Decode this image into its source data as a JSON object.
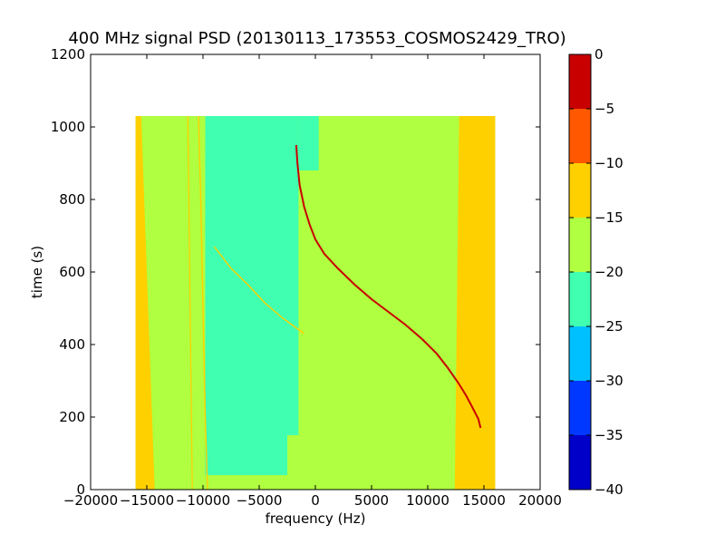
{
  "chart_data": {
    "type": "heatmap",
    "title": "400 MHz signal PSD (20130113_173553_COSMOS2429_TRO)",
    "xlabel": "frequency (Hz)",
    "ylabel": "time (s)",
    "xlim": [
      -20000,
      20000
    ],
    "ylim": [
      0,
      1200
    ],
    "xticks": [
      -20000,
      -15000,
      -10000,
      -5000,
      0,
      5000,
      10000,
      15000,
      20000
    ],
    "xtick_labels": [
      "−20000",
      "−15000",
      "−10000",
      "−5000",
      "0",
      "5000",
      "10000",
      "15000",
      "20000"
    ],
    "yticks": [
      0,
      200,
      400,
      600,
      800,
      1000,
      1200
    ],
    "ytick_labels": [
      "0",
      "200",
      "400",
      "600",
      "800",
      "1000",
      "1200"
    ],
    "data_extent": {
      "x": [
        -16000,
        16000
      ],
      "y": [
        0,
        1030
      ]
    },
    "colorbar": {
      "levels": [
        -40,
        -35,
        -30,
        -25,
        -20,
        -15,
        -10,
        -5,
        0
      ],
      "tick_labels": [
        "−40",
        "−35",
        "−30",
        "−25",
        "−20",
        "−15",
        "−10",
        "−5",
        "0"
      ],
      "colors": [
        "#0000c8",
        "#0038ff",
        "#00c0ff",
        "#40ffb0",
        "#b0ff40",
        "#ffd000",
        "#ff5800",
        "#c80000"
      ]
    },
    "regions": [
      {
        "name": "background",
        "level_color": "#b0ff40",
        "polygon": [
          [
            -16000,
            0
          ],
          [
            16000,
            0
          ],
          [
            16000,
            1030
          ],
          [
            -16000,
            1030
          ]
        ]
      },
      {
        "name": "left-edge-band",
        "level_color": "#ffd000",
        "polygon": [
          [
            -16000,
            0
          ],
          [
            -14300,
            0
          ],
          [
            -15500,
            1030
          ],
          [
            -16000,
            1030
          ]
        ]
      },
      {
        "name": "right-edge-band",
        "level_color": "#ffd000",
        "polygon": [
          [
            12400,
            0
          ],
          [
            16000,
            0
          ],
          [
            16000,
            1030
          ],
          [
            12800,
            1030
          ]
        ]
      },
      {
        "name": "central-noise-region",
        "level_color": "#40ffb0",
        "polygon": [
          [
            -9800,
            40
          ],
          [
            -2500,
            40
          ],
          [
            -2500,
            150
          ],
          [
            -1500,
            150
          ],
          [
            -1500,
            1030
          ],
          [
            -9800,
            1030
          ]
        ]
      },
      {
        "name": "upper-noise-extension",
        "level_color": "#40ffb0",
        "polygon": [
          [
            -1500,
            880
          ],
          [
            300,
            880
          ],
          [
            300,
            1030
          ],
          [
            -1500,
            1030
          ]
        ]
      },
      {
        "name": "left-stripe",
        "level_color": "#ffd000",
        "polygon": [
          [
            -11000,
            0
          ],
          [
            -10900,
            0
          ],
          [
            -11300,
            1030
          ],
          [
            -11400,
            1030
          ]
        ]
      },
      {
        "name": "left-wide-stripe",
        "level_color": "#b0ff40",
        "polygon": [
          [
            -10200,
            0
          ],
          [
            -9800,
            0
          ],
          [
            -9900,
            1030
          ],
          [
            -10300,
            1030
          ]
        ]
      }
    ],
    "series": [
      {
        "type": "line",
        "color": "#c80000",
        "points": [
          [
            -1700,
            950
          ],
          [
            -1600,
            900
          ],
          [
            -1400,
            840
          ],
          [
            -1000,
            780
          ],
          [
            -500,
            730
          ],
          [
            0,
            690
          ],
          [
            800,
            650
          ],
          [
            2000,
            610
          ],
          [
            3500,
            565
          ],
          [
            5000,
            525
          ],
          [
            6500,
            490
          ],
          [
            8000,
            455
          ],
          [
            9500,
            415
          ],
          [
            10800,
            375
          ],
          [
            11800,
            335
          ],
          [
            12700,
            295
          ],
          [
            13400,
            260
          ],
          [
            14000,
            225
          ],
          [
            14500,
            195
          ],
          [
            14700,
            170
          ]
        ]
      },
      {
        "type": "line",
        "color": "#ffd000",
        "points": [
          [
            -9000,
            670
          ],
          [
            -7500,
            610
          ],
          [
            -6000,
            565
          ],
          [
            -4500,
            515
          ],
          [
            -3000,
            475
          ],
          [
            -1000,
            430
          ]
        ]
      },
      {
        "type": "line",
        "color": "#ffd000",
        "points": [
          [
            -15500,
            720
          ],
          [
            -15300,
            550
          ],
          [
            -15100,
            380
          ],
          [
            -14900,
            200
          ],
          [
            -14700,
            50
          ]
        ]
      },
      {
        "type": "line",
        "color": "#ffd000",
        "points": [
          [
            -10400,
            1030
          ],
          [
            -10200,
            800
          ],
          [
            -10000,
            500
          ],
          [
            -9800,
            200
          ],
          [
            -9600,
            0
          ]
        ]
      }
    ]
  }
}
